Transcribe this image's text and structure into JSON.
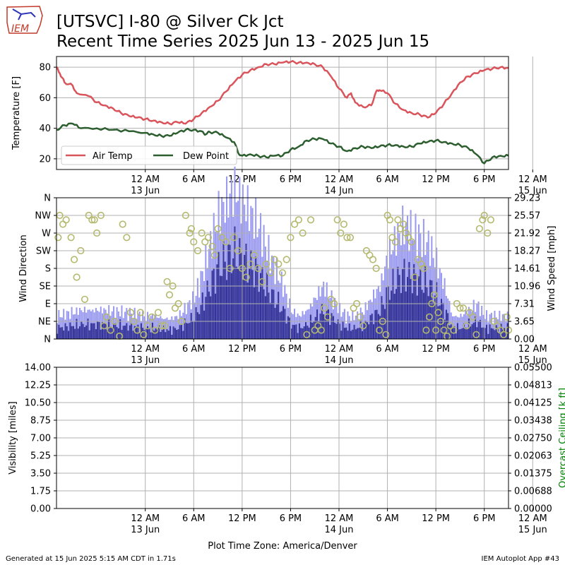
{
  "title_line1": "[UTSVC] I-80 @ Silver Ck Jct",
  "title_line2": "Recent Time Series 2025 Jun 13 - 2025 Jun 15",
  "logo_text": "IEM",
  "footer_left": "Generated at 15 Jun 2025 5:15 AM CDT in 1.71s",
  "footer_right": "IEM Autoplot App #43",
  "colors": {
    "air_temp": "#d9545b",
    "dew_point": "#2d5e2f",
    "gust_bar": "#9b9bef",
    "speed_bar": "#33339a",
    "direction_marker": "#b5b96e",
    "ceiling_label": "#008000",
    "grid": "#b0b0b0"
  },
  "chart_data": [
    {
      "type": "line",
      "ylabel": "Temperature [F]",
      "ylim": [
        13,
        87
      ],
      "yticks": [
        "20",
        "40",
        "60",
        "80"
      ],
      "x_hours_range": [
        -11,
        45
      ],
      "xticks": [
        {
          "l1": "12 AM",
          "l2": "13 Jun"
        },
        {
          "l1": "6 AM",
          "l2": ""
        },
        {
          "l1": "12 PM",
          "l2": ""
        },
        {
          "l1": "6 PM",
          "l2": ""
        },
        {
          "l1": "12 AM",
          "l2": "14 Jun"
        },
        {
          "l1": "6 AM",
          "l2": ""
        },
        {
          "l1": "12 PM",
          "l2": ""
        },
        {
          "l1": "6 PM",
          "l2": ""
        },
        {
          "l1": "12 AM",
          "l2": "15 Jun"
        }
      ],
      "grid": true,
      "legend_position": "lower-left",
      "series": [
        {
          "name": "Air Temp",
          "points": [
            [
              -11,
              80
            ],
            [
              -10.6,
              76
            ],
            [
              -10,
              70
            ],
            [
              -9,
              68
            ],
            [
              -8.5,
              63
            ],
            [
              -7,
              61
            ],
            [
              -6,
              57
            ],
            [
              -5,
              55
            ],
            [
              -4,
              53
            ],
            [
              -3,
              50
            ],
            [
              -2,
              48
            ],
            [
              -1,
              47
            ],
            [
              0,
              46
            ],
            [
              1,
              45
            ],
            [
              2,
              44
            ],
            [
              3,
              43
            ],
            [
              4,
              44
            ],
            [
              5,
              43
            ],
            [
              6,
              46
            ],
            [
              7,
              50
            ],
            [
              8,
              54
            ],
            [
              9,
              58
            ],
            [
              10,
              64
            ],
            [
              11,
              70
            ],
            [
              12,
              75
            ],
            [
              13,
              78
            ],
            [
              14,
              80
            ],
            [
              15,
              82
            ],
            [
              16,
              82
            ],
            [
              17,
              83
            ],
            [
              18,
              83.5
            ],
            [
              19,
              83
            ],
            [
              20,
              83
            ],
            [
              21,
              82
            ],
            [
              22,
              80
            ],
            [
              23,
              74
            ],
            [
              24,
              66
            ],
            [
              25,
              60
            ],
            [
              25.5,
              63
            ],
            [
              26,
              57
            ],
            [
              27,
              54
            ],
            [
              28,
              55
            ],
            [
              28.6,
              64
            ],
            [
              29,
              65
            ],
            [
              30,
              63
            ],
            [
              31,
              56
            ],
            [
              32,
              52
            ],
            [
              33,
              50
            ],
            [
              34,
              49
            ],
            [
              35,
              47
            ],
            [
              36,
              50
            ],
            [
              37,
              56
            ],
            [
              38,
              63
            ],
            [
              39,
              70
            ],
            [
              40,
              74
            ],
            [
              41,
              76
            ],
            [
              42,
              78
            ],
            [
              43,
              79
            ],
            [
              44,
              80
            ],
            [
              45,
              79.5
            ]
          ]
        },
        {
          "name": "Dew Point",
          "points": [
            [
              -11,
              39
            ],
            [
              -10,
              42
            ],
            [
              -9,
              43
            ],
            [
              -8,
              40
            ],
            [
              -6,
              40
            ],
            [
              -4,
              39
            ],
            [
              -2,
              38
            ],
            [
              0,
              37
            ],
            [
              1,
              36
            ],
            [
              2,
              35
            ],
            [
              3,
              35
            ],
            [
              4,
              37
            ],
            [
              5,
              39
            ],
            [
              6,
              39
            ],
            [
              7,
              38
            ],
            [
              7.5,
              36
            ],
            [
              8,
              37.5
            ],
            [
              9,
              37
            ],
            [
              10,
              34
            ],
            [
              11,
              31
            ],
            [
              11.5,
              24
            ],
            [
              12,
              22
            ],
            [
              13,
              23
            ],
            [
              14,
              22
            ],
            [
              15,
              21
            ],
            [
              16,
              22
            ],
            [
              17,
              22
            ],
            [
              18,
              26
            ],
            [
              19,
              28
            ],
            [
              20,
              32
            ],
            [
              21,
              33
            ],
            [
              22,
              33
            ],
            [
              23,
              30
            ],
            [
              24,
              28
            ],
            [
              25,
              25
            ],
            [
              26,
              27
            ],
            [
              27,
              28
            ],
            [
              28,
              27
            ],
            [
              29,
              28
            ],
            [
              30,
              29
            ],
            [
              31,
              29
            ],
            [
              32,
              28
            ],
            [
              33,
              28
            ],
            [
              34,
              30
            ],
            [
              35,
              31
            ],
            [
              36,
              32
            ],
            [
              37,
              31
            ],
            [
              38,
              30
            ],
            [
              39,
              29
            ],
            [
              40,
              27
            ],
            [
              41,
              23
            ],
            [
              42,
              17
            ],
            [
              43,
              21
            ],
            [
              44,
              22
            ],
            [
              45,
              22
            ]
          ]
        }
      ]
    },
    {
      "type": "bar",
      "ylabel": "Wind Direction",
      "y2label": "Wind Speed [mph]",
      "yticks_left": [
        "N",
        "NE",
        "E",
        "SE",
        "S",
        "SW",
        "W",
        "NW",
        "N"
      ],
      "yticks_right": [
        "0.00",
        "3.65",
        "7.31",
        "10.96",
        "14.61",
        "18.27",
        "21.92",
        "25.57",
        "29.23"
      ],
      "speed_max_mph": 29.23,
      "grid": true,
      "speed_profile": [
        [
          -11,
          3
        ],
        [
          -8,
          4
        ],
        [
          -5,
          4
        ],
        [
          -2,
          3.5
        ],
        [
          0,
          3
        ],
        [
          1,
          3
        ],
        [
          3,
          2.5
        ],
        [
          4,
          3
        ],
        [
          6,
          6
        ],
        [
          7,
          10
        ],
        [
          8,
          15
        ],
        [
          9,
          20
        ],
        [
          10,
          22
        ],
        [
          11,
          24
        ],
        [
          12,
          22
        ],
        [
          13,
          20
        ],
        [
          14,
          18
        ],
        [
          15,
          14
        ],
        [
          16,
          11
        ],
        [
          17,
          8
        ],
        [
          18,
          4
        ],
        [
          19,
          3
        ],
        [
          20,
          4
        ],
        [
          21,
          6
        ],
        [
          22,
          8
        ],
        [
          23,
          6
        ],
        [
          24,
          4
        ],
        [
          25,
          3
        ],
        [
          26,
          3
        ],
        [
          27,
          4
        ],
        [
          28,
          6
        ],
        [
          29,
          8
        ],
        [
          30,
          13
        ],
        [
          31,
          16
        ],
        [
          32,
          18
        ],
        [
          33,
          17
        ],
        [
          34,
          16
        ],
        [
          35,
          15
        ],
        [
          36,
          12
        ],
        [
          37,
          8
        ],
        [
          38,
          3
        ],
        [
          39,
          3
        ],
        [
          40,
          4
        ],
        [
          41,
          5
        ],
        [
          42,
          3
        ],
        [
          45,
          3
        ]
      ],
      "direction_points": [
        [
          -10.8,
          23
        ],
        [
          -10.6,
          28
        ],
        [
          -10.2,
          26
        ],
        [
          -9.8,
          27
        ],
        [
          -9.2,
          23
        ],
        [
          -8.8,
          18
        ],
        [
          -8.5,
          14
        ],
        [
          -8,
          20
        ],
        [
          -7.5,
          9
        ],
        [
          -7,
          28
        ],
        [
          -6.6,
          27
        ],
        [
          -6.3,
          27
        ],
        [
          -6,
          24
        ],
        [
          -5.5,
          28
        ],
        [
          -5.1,
          3
        ],
        [
          -4.8,
          5
        ],
        [
          -4.3,
          2
        ],
        [
          -3.8,
          4
        ],
        [
          -3.2,
          0
        ],
        [
          -2.8,
          26
        ],
        [
          -2.3,
          23
        ],
        [
          -1.8,
          6
        ],
        [
          -1.4,
          4
        ],
        [
          -1,
          2
        ],
        [
          -0.6,
          6
        ],
        [
          -0.2,
          1
        ],
        [
          0.3,
          3
        ],
        [
          0.8,
          5
        ],
        [
          1.2,
          2
        ],
        [
          1.6,
          6
        ],
        [
          2,
          3
        ],
        [
          2.4,
          3
        ],
        [
          2.7,
          13
        ],
        [
          3,
          10
        ],
        [
          3.4,
          12
        ],
        [
          3.7,
          7
        ],
        [
          4.1,
          8
        ],
        [
          4.5,
          4
        ],
        [
          5,
          28
        ],
        [
          5.5,
          24
        ],
        [
          5.7,
          25
        ],
        [
          6,
          22
        ],
        [
          6.5,
          20
        ],
        [
          7,
          24
        ],
        [
          7.4,
          22
        ],
        [
          7.8,
          23
        ],
        [
          8.3,
          21
        ],
        [
          8.6,
          19
        ],
        [
          9,
          25
        ],
        [
          9.5,
          23
        ],
        [
          10,
          22
        ],
        [
          10.5,
          16
        ],
        [
          11,
          23
        ],
        [
          11.5,
          20
        ],
        [
          12,
          16
        ],
        [
          12.5,
          14
        ],
        [
          13,
          17
        ],
        [
          13.5,
          19
        ],
        [
          14,
          16
        ],
        [
          14.5,
          13
        ],
        [
          15,
          17
        ],
        [
          15.5,
          15
        ],
        [
          16,
          18
        ],
        [
          16.5,
          17
        ],
        [
          17,
          15
        ],
        [
          17.5,
          18
        ],
        [
          18,
          23
        ],
        [
          18.5,
          26
        ],
        [
          19,
          27
        ],
        [
          19.5,
          24
        ],
        [
          20,
          1
        ],
        [
          20.5,
          27
        ],
        [
          21,
          2
        ],
        [
          21.4,
          3
        ],
        [
          21.8,
          2
        ],
        [
          22.2,
          7
        ],
        [
          22.6,
          5
        ],
        [
          23,
          9
        ],
        [
          23.4,
          8
        ],
        [
          23.8,
          27
        ],
        [
          24.2,
          24
        ],
        [
          24.6,
          26
        ],
        [
          25,
          23
        ],
        [
          25.4,
          23
        ],
        [
          25.8,
          7
        ],
        [
          26.2,
          8
        ],
        [
          26.6,
          5
        ],
        [
          27,
          3
        ],
        [
          27.4,
          20
        ],
        [
          27.8,
          19
        ],
        [
          28.2,
          18
        ],
        [
          28.6,
          16
        ],
        [
          29,
          2
        ],
        [
          29.4,
          4
        ],
        [
          29.8,
          1
        ],
        [
          30,
          28
        ],
        [
          30.3,
          27
        ],
        [
          30.6,
          23
        ],
        [
          31,
          22
        ],
        [
          31.3,
          27
        ],
        [
          31.6,
          25
        ],
        [
          32,
          26
        ],
        [
          32.3,
          24
        ],
        [
          32.6,
          23
        ],
        [
          33,
          22
        ],
        [
          33.4,
          14
        ],
        [
          33.8,
          18
        ],
        [
          34.2,
          17
        ],
        [
          34.5,
          16
        ],
        [
          34.8,
          2
        ],
        [
          35.2,
          5
        ],
        [
          35.5,
          8
        ],
        [
          35.8,
          10
        ],
        [
          36,
          2
        ],
        [
          36.3,
          6
        ],
        [
          36.6,
          4
        ],
        [
          37,
          2
        ],
        [
          37.4,
          0
        ],
        [
          37.8,
          3
        ],
        [
          38.2,
          2
        ],
        [
          38.6,
          8
        ],
        [
          39,
          7
        ],
        [
          39.4,
          7
        ],
        [
          39.8,
          3
        ],
        [
          40.2,
          6
        ],
        [
          40.6,
          5
        ],
        [
          41,
          1
        ],
        [
          41.4,
          25
        ],
        [
          41.8,
          27
        ],
        [
          42,
          28
        ],
        [
          42.4,
          24
        ],
        [
          42.8,
          27
        ],
        [
          43.2,
          4
        ],
        [
          43.6,
          3
        ],
        [
          44,
          2
        ],
        [
          44.4,
          1
        ],
        [
          44.8,
          5
        ],
        [
          45,
          2
        ]
      ]
    },
    {
      "type": "line",
      "ylabel": "Visibility [miles]",
      "y2label": "Overcast Ceiling [k ft]",
      "yticks_left": [
        "0.00",
        "1.75",
        "3.50",
        "5.25",
        "7.00",
        "8.75",
        "10.50",
        "12.25",
        "14.00"
      ],
      "yticks_right": [
        "0.00000",
        "0.00688",
        "0.01375",
        "0.02063",
        "0.02750",
        "0.03438",
        "0.04125",
        "0.04813",
        "0.05500"
      ],
      "grid": true,
      "xlabel": "Plot Time Zone: America/Denver"
    }
  ]
}
